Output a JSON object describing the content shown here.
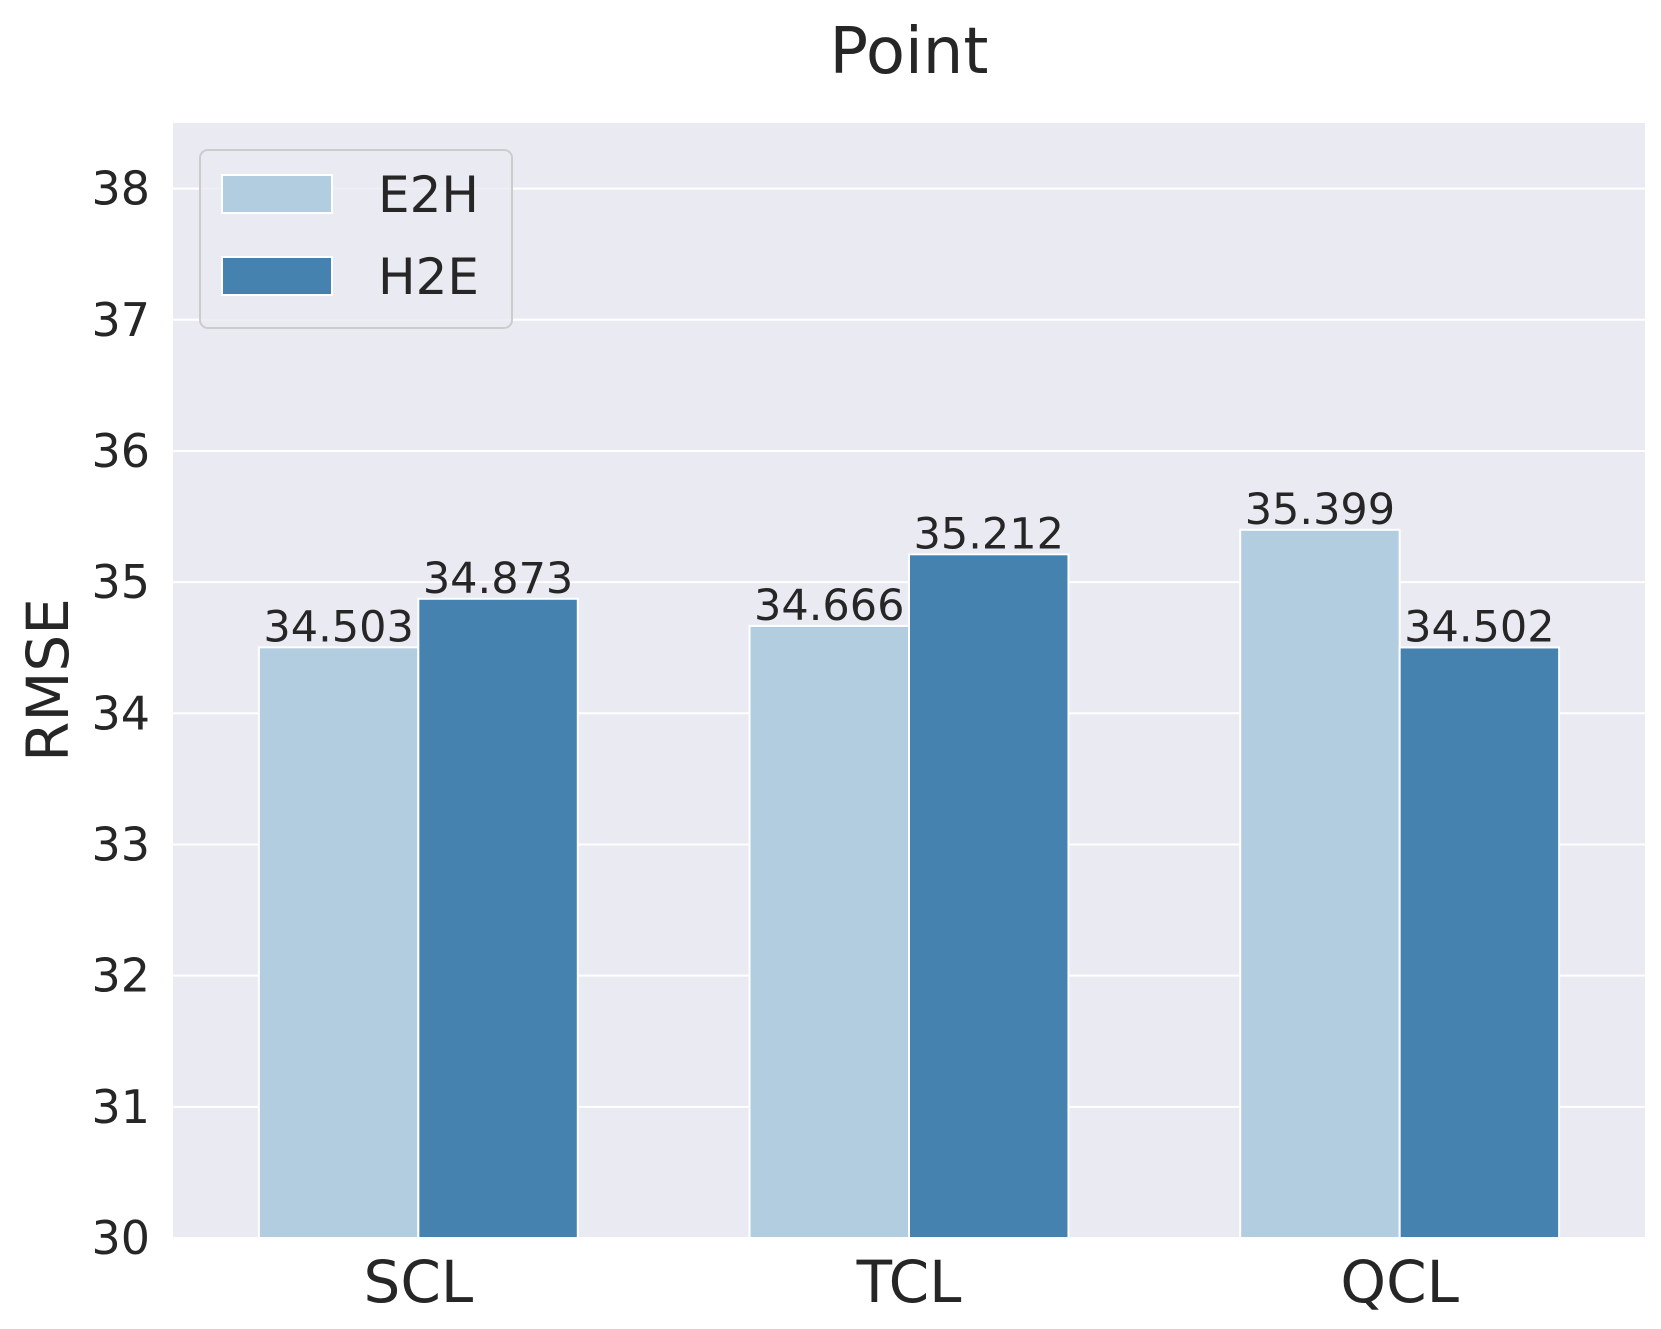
{
  "chart_data": {
    "type": "bar",
    "title": "Point",
    "xlabel": "",
    "ylabel": "RMSE",
    "categories": [
      "SCL",
      "TCL",
      "QCL"
    ],
    "series": [
      {
        "name": "E2H",
        "color": "#b3cde0",
        "values": [
          34.503,
          34.666,
          35.399
        ],
        "labels": [
          "34.503",
          "34.666",
          "35.399"
        ]
      },
      {
        "name": "H2E",
        "color": "#4682b0",
        "values": [
          34.873,
          35.212,
          34.502
        ],
        "labels": [
          "34.873",
          "35.212",
          "34.502"
        ]
      }
    ],
    "ylim": [
      30,
      38.5
    ],
    "yticks": [
      30,
      31,
      32,
      33,
      34,
      35,
      36,
      37,
      38
    ],
    "grid": true,
    "legend_position": "top-left",
    "background": "#eaeaf2"
  }
}
